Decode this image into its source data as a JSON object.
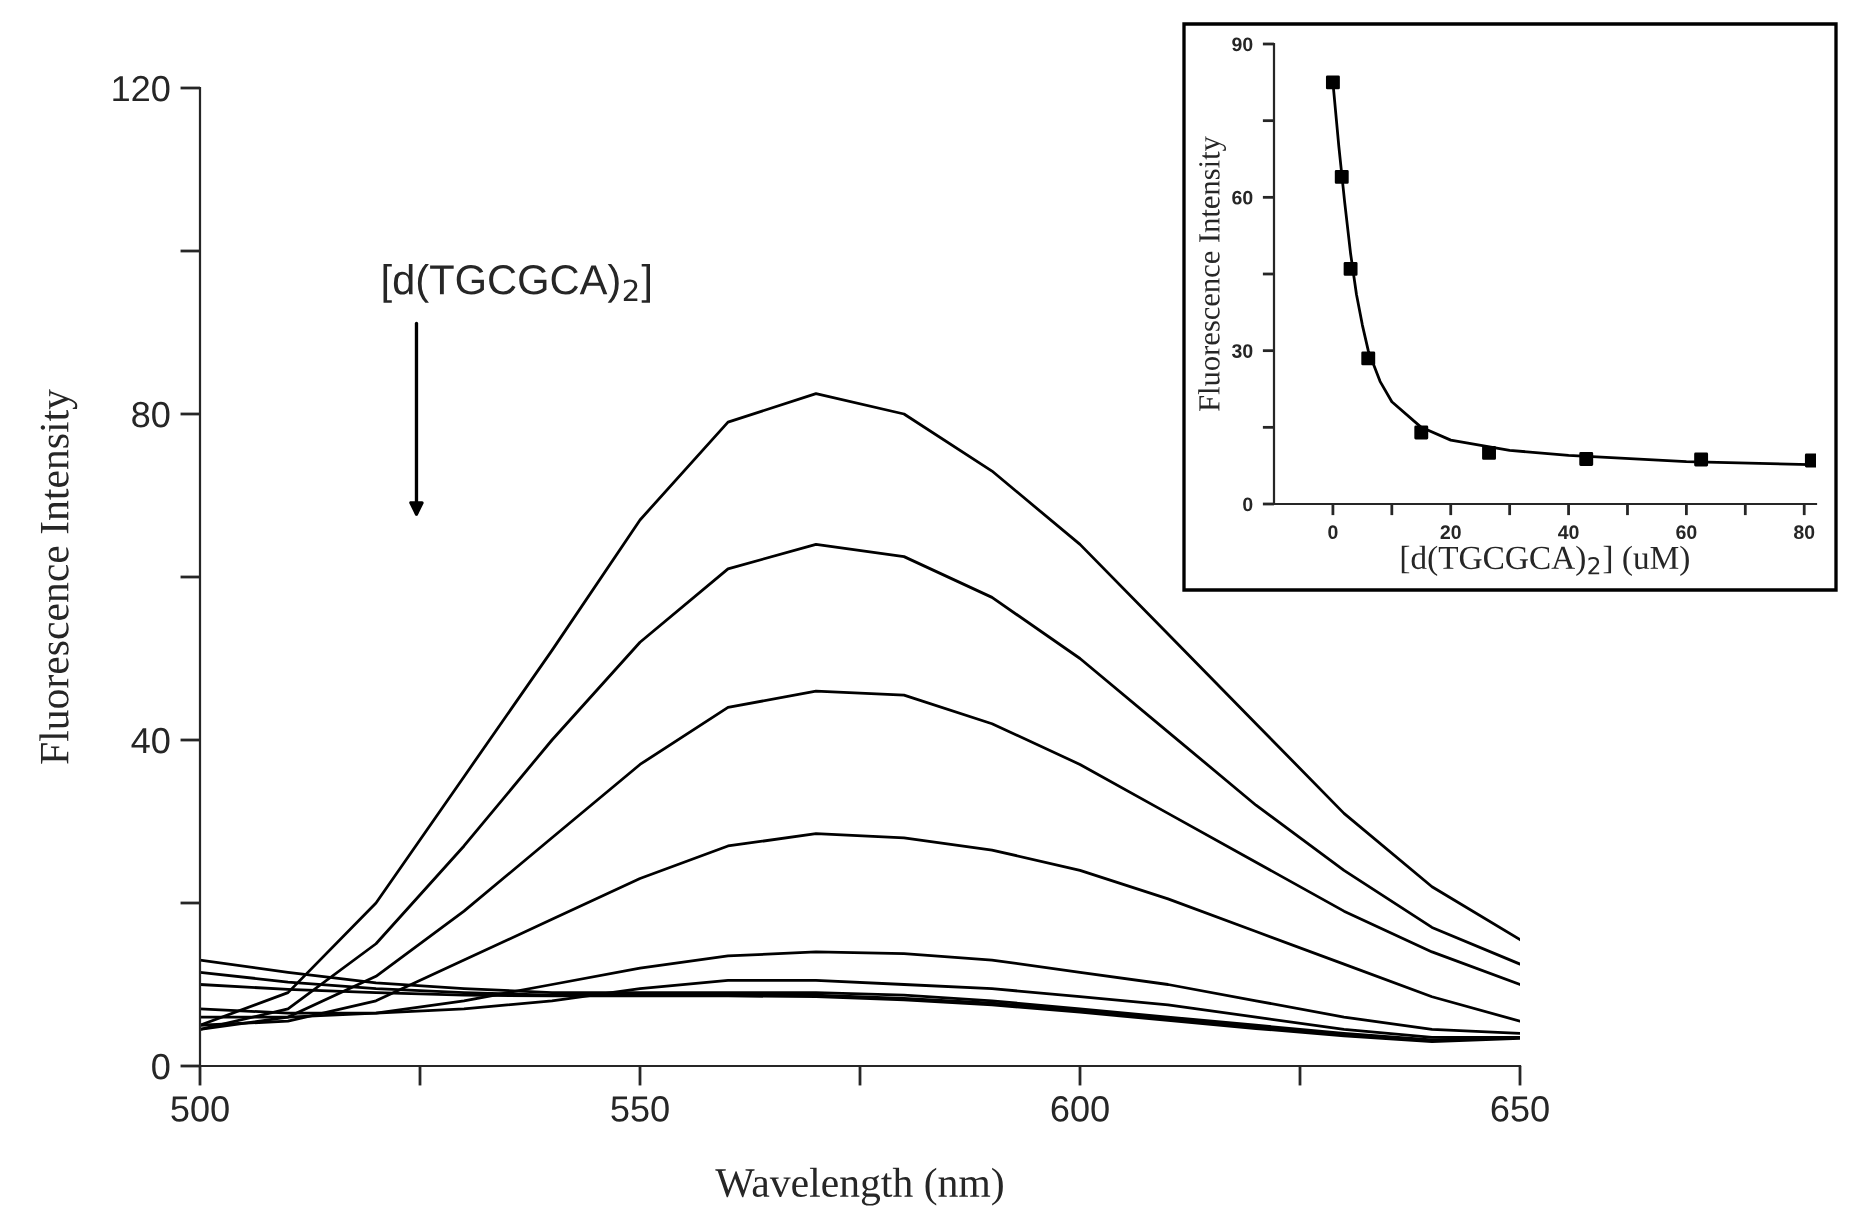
{
  "chart_data": [
    {
      "type": "line",
      "xlabel": "Wavelength (nm)",
      "ylabel": "Fluorescence Intensity",
      "annotations": [
        "[d(TGCGCA)$_{2}$]"
      ],
      "x": [
        500,
        510,
        520,
        530,
        540,
        550,
        560,
        570,
        580,
        590,
        600,
        610,
        620,
        630,
        640,
        650
      ],
      "series": [
        {
          "color": "#000000",
          "values": [
            5,
            9,
            20,
            35.5,
            51,
            67,
            79,
            82.5,
            80,
            73,
            64,
            53,
            42,
            31,
            22,
            15.5
          ]
        },
        {
          "color": "#000000",
          "values": [
            4.5,
            7,
            15,
            27,
            40,
            52,
            61,
            64,
            62.5,
            57.5,
            50,
            41,
            32,
            24,
            17,
            12.5
          ]
        },
        {
          "color": "#000000",
          "values": [
            4.5,
            6,
            11,
            19,
            28,
            37,
            44,
            46,
            45.5,
            42,
            37,
            31,
            25,
            19,
            14,
            10
          ]
        },
        {
          "color": "#000000",
          "values": [
            5,
            5.5,
            8,
            13,
            18,
            23,
            27,
            28.5,
            28,
            26.5,
            24,
            20.5,
            16.5,
            12.5,
            8.5,
            5.5
          ]
        },
        {
          "color": "#000000",
          "values": [
            6,
            6,
            6.5,
            8,
            10,
            12,
            13.5,
            14,
            13.8,
            13,
            11.5,
            10,
            8,
            6,
            4.5,
            4
          ]
        },
        {
          "color": "#000000",
          "values": [
            7,
            6.5,
            6.5,
            7,
            8,
            9.5,
            10.5,
            10.5,
            10,
            9.5,
            8.5,
            7.5,
            6,
            4.5,
            3.5,
            3.5
          ]
        },
        {
          "color": "#000000",
          "values": [
            13,
            11.5,
            10.2,
            9.5,
            9,
            9,
            9,
            9,
            8.7,
            8,
            7,
            6,
            5,
            4,
            3.2,
            3.5
          ]
        },
        {
          "color": "#000000",
          "values": [
            11.5,
            10.3,
            9.5,
            9,
            8.7,
            8.7,
            8.8,
            8.7,
            8.3,
            7.7,
            6.8,
            5.8,
            4.8,
            3.8,
            3.1,
            3.5
          ]
        },
        {
          "color": "#000000",
          "values": [
            10,
            9.4,
            9,
            8.7,
            8.6,
            8.6,
            8.6,
            8.5,
            8.1,
            7.5,
            6.6,
            5.6,
            4.6,
            3.7,
            3,
            3.4
          ]
        }
      ],
      "xlim": [
        500,
        650
      ],
      "xticks": [
        500,
        {
          "value": 525,
          "label": null
        },
        550,
        {
          "value": 575,
          "label": null
        },
        600,
        {
          "value": 625,
          "label": null
        },
        650
      ],
      "ylim": [
        0,
        120
      ],
      "yticks": [
        0,
        {
          "value": 20,
          "label": null
        },
        40,
        {
          "value": 60,
          "label": null
        },
        80,
        {
          "value": 100,
          "label": null
        },
        120
      ],
      "line_style": "solid",
      "marker": "none"
    },
    {
      "type": "scatter",
      "xlabel": "[d(TGCGCA)$_{2}$] (uM)",
      "ylabel": "Fluorescence Intensity",
      "series": [
        {
          "color": "#000000",
          "marker": "square",
          "x": [
            0,
            1.5,
            3,
            6,
            15,
            26.5,
            43,
            62.5,
            81.3
          ],
          "values": [
            82.5,
            64,
            46,
            28.5,
            14,
            10,
            8.8,
            8.7,
            8.5
          ]
        },
        {
          "type": "line",
          "marker": "none",
          "color": "#000000",
          "x": [
            0,
            1,
            2,
            3,
            4,
            5,
            6,
            8,
            10,
            15,
            20,
            30,
            40,
            60,
            81
          ],
          "values": [
            82.5,
            70,
            59,
            49,
            41,
            35,
            30,
            24,
            20,
            15,
            12.5,
            10.5,
            9.5,
            8.3,
            7.7
          ]
        }
      ],
      "xlim": [
        -10,
        82
      ],
      "xticks": [
        0,
        {
          "value": 10,
          "label": null
        },
        20,
        {
          "value": 30,
          "label": null
        },
        40,
        {
          "value": 50,
          "label": null
        },
        60,
        {
          "value": 70,
          "label": null
        },
        80
      ],
      "ylim": [
        0,
        90
      ],
      "yticks": [
        0,
        {
          "value": 15,
          "label": null
        },
        30,
        {
          "value": 45,
          "label": null
        },
        60,
        {
          "value": 75,
          "label": null
        },
        90
      ]
    }
  ]
}
